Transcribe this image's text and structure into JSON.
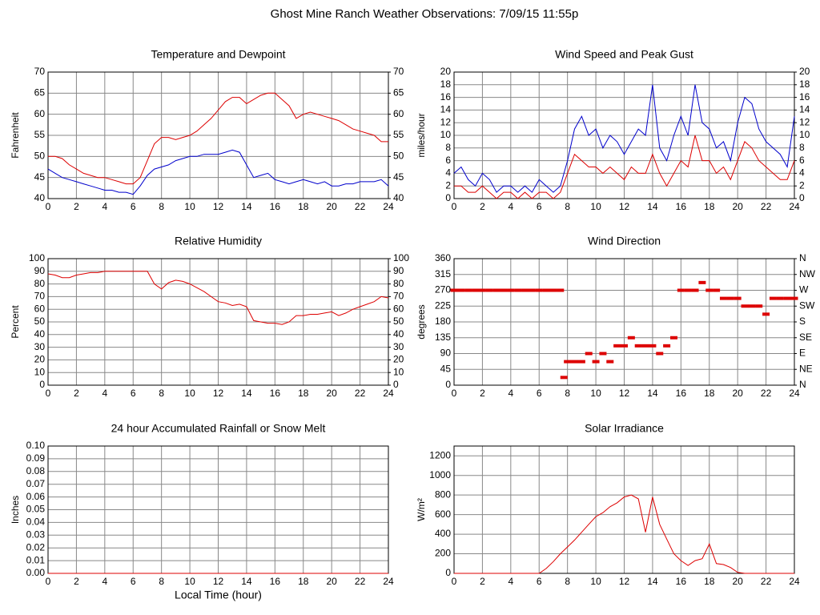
{
  "title": "Ghost Mine Ranch Weather Observations: 7/09/15 11:55p",
  "chart_data": [
    {
      "type": "line",
      "title": "Temperature and Dewpoint",
      "ylabel": "Fahrenheit",
      "x": [
        0,
        0.5,
        1,
        1.5,
        2,
        2.5,
        3,
        3.5,
        4,
        4.5,
        5,
        5.5,
        6,
        6.5,
        7,
        7.5,
        8,
        8.5,
        9,
        9.5,
        10,
        10.5,
        11,
        11.5,
        12,
        12.5,
        13,
        13.5,
        14,
        14.5,
        15,
        15.5,
        16,
        16.5,
        17,
        17.5,
        18,
        18.5,
        19,
        19.5,
        20,
        20.5,
        21,
        21.5,
        22,
        22.5,
        23,
        23.5,
        24
      ],
      "xlim": [
        0,
        24
      ],
      "xticks": [
        0,
        2,
        4,
        6,
        8,
        10,
        12,
        14,
        16,
        18,
        20,
        22,
        24
      ],
      "ylim": [
        40,
        70
      ],
      "yticks": [
        40,
        45,
        50,
        55,
        60,
        65,
        70
      ],
      "y2lim": [
        40,
        70
      ],
      "y2ticks": [
        40,
        45,
        50,
        55,
        60,
        65,
        70
      ],
      "grid": true,
      "series": [
        {
          "color": "#dd0000",
          "values": [
            50,
            50,
            49.5,
            48,
            47,
            46,
            45.5,
            45,
            45,
            44.5,
            44,
            43.5,
            43.5,
            45,
            49,
            53,
            54.5,
            54.5,
            54,
            54.5,
            55,
            56,
            57.5,
            59,
            61,
            63,
            64,
            64,
            62.5,
            63.5,
            64.5,
            65,
            65,
            63.5,
            62,
            59,
            60,
            60.5,
            60,
            59.5,
            59,
            58.5,
            57.5,
            56.5,
            56,
            55.5,
            55,
            53.5,
            53.5
          ]
        },
        {
          "color": "#0000cc",
          "values": [
            47,
            46,
            45,
            44.5,
            44,
            43.5,
            43,
            42.5,
            42,
            42,
            41.5,
            41.5,
            41,
            43,
            45.5,
            47,
            47.5,
            48,
            49,
            49.5,
            50,
            50,
            50.5,
            50.5,
            50.5,
            51,
            51.5,
            51,
            48,
            45,
            45.5,
            46,
            44.5,
            44,
            43.5,
            44,
            44.5,
            44,
            43.5,
            44,
            43,
            43,
            43.5,
            43.5,
            44,
            44,
            44,
            44.5,
            43
          ]
        }
      ]
    },
    {
      "type": "line",
      "title": "Wind Speed and Peak Gust",
      "ylabel": "miles/hour",
      "x": [
        0,
        0.5,
        1,
        1.5,
        2,
        2.5,
        3,
        3.5,
        4,
        4.5,
        5,
        5.5,
        6,
        6.5,
        7,
        7.5,
        8,
        8.5,
        9,
        9.5,
        10,
        10.5,
        11,
        11.5,
        12,
        12.5,
        13,
        13.5,
        14,
        14.5,
        15,
        15.5,
        16,
        16.5,
        17,
        17.5,
        18,
        18.5,
        19,
        19.5,
        20,
        20.5,
        21,
        21.5,
        22,
        22.5,
        23,
        23.5,
        24
      ],
      "xlim": [
        0,
        24
      ],
      "xticks": [
        0,
        2,
        4,
        6,
        8,
        10,
        12,
        14,
        16,
        18,
        20,
        22,
        24
      ],
      "ylim": [
        0,
        20
      ],
      "yticks": [
        0,
        2,
        4,
        6,
        8,
        10,
        12,
        14,
        16,
        18,
        20
      ],
      "y2lim": [
        0,
        20
      ],
      "y2ticks": [
        0,
        2,
        4,
        6,
        8,
        10,
        12,
        14,
        16,
        18,
        20
      ],
      "grid": true,
      "series": [
        {
          "color": "#0000cc",
          "values": [
            4,
            5,
            3,
            2,
            4,
            3,
            1,
            2,
            2,
            1,
            2,
            1,
            3,
            2,
            1,
            2,
            6,
            11,
            13,
            10,
            11,
            8,
            10,
            9,
            7,
            9,
            11,
            10,
            18,
            8,
            6,
            10,
            13,
            10,
            18,
            12,
            11,
            8,
            9,
            6,
            12,
            16,
            15,
            11,
            9,
            8,
            7,
            5,
            13
          ]
        },
        {
          "color": "#dd0000",
          "values": [
            2,
            2,
            1,
            1,
            2,
            1,
            0,
            1,
            1,
            0,
            1,
            0,
            1,
            1,
            0,
            1,
            4,
            7,
            6,
            5,
            5,
            4,
            5,
            4,
            3,
            5,
            4,
            4,
            7,
            4,
            2,
            4,
            6,
            5,
            10,
            6,
            6,
            4,
            5,
            3,
            6,
            9,
            8,
            6,
            5,
            4,
            3,
            3,
            6
          ]
        }
      ]
    },
    {
      "type": "line",
      "title": "Relative Humidity",
      "ylabel": "Percent",
      "x": [
        0,
        0.5,
        1,
        1.5,
        2,
        2.5,
        3,
        3.5,
        4,
        4.5,
        5,
        5.5,
        6,
        6.5,
        7,
        7.5,
        8,
        8.5,
        9,
        9.5,
        10,
        10.5,
        11,
        11.5,
        12,
        12.5,
        13,
        13.5,
        14,
        14.5,
        15,
        15.5,
        16,
        16.5,
        17,
        17.5,
        18,
        18.5,
        19,
        19.5,
        20,
        20.5,
        21,
        21.5,
        22,
        22.5,
        23,
        23.5,
        24
      ],
      "xlim": [
        0,
        24
      ],
      "xticks": [
        0,
        2,
        4,
        6,
        8,
        10,
        12,
        14,
        16,
        18,
        20,
        22,
        24
      ],
      "ylim": [
        0,
        100
      ],
      "yticks": [
        0,
        10,
        20,
        30,
        40,
        50,
        60,
        70,
        80,
        90,
        100
      ],
      "y2lim": [
        0,
        100
      ],
      "y2ticks": [
        0,
        10,
        20,
        30,
        40,
        50,
        60,
        70,
        80,
        90,
        100
      ],
      "grid": true,
      "series": [
        {
          "color": "#dd0000",
          "values": [
            88,
            87,
            85,
            85,
            87,
            88,
            89,
            89,
            90,
            90,
            90,
            90,
            90,
            90,
            90,
            80,
            76,
            81,
            83,
            82,
            80,
            77,
            74,
            70,
            66,
            65,
            63,
            64,
            62,
            51,
            50,
            49,
            49,
            48,
            50,
            55,
            55,
            56,
            56,
            57,
            58,
            55,
            57,
            60,
            62,
            64,
            66,
            70,
            69
          ]
        }
      ]
    },
    {
      "type": "scatter",
      "title": "Wind Direction",
      "ylabel": "degrees",
      "x": [
        0,
        0.5,
        1,
        1.5,
        2,
        2.5,
        3,
        3.5,
        4,
        4.5,
        5,
        5.5,
        6,
        6.5,
        7,
        7.5,
        7.75,
        8,
        8.5,
        9,
        9.5,
        10,
        10.5,
        11,
        11.5,
        12,
        12.5,
        13,
        13.5,
        14,
        14.5,
        15,
        15.5,
        16,
        16.5,
        17,
        17.5,
        18,
        18.5,
        19,
        19.5,
        20,
        20.5,
        21,
        21.5,
        22,
        22.5,
        23,
        23.5,
        24
      ],
      "xlim": [
        0,
        24
      ],
      "xticks": [
        0,
        2,
        4,
        6,
        8,
        10,
        12,
        14,
        16,
        18,
        20,
        22,
        24
      ],
      "ylim": [
        0,
        360
      ],
      "yticks": [
        0,
        45,
        90,
        135,
        180,
        225,
        270,
        315,
        360
      ],
      "y2lim": [
        0,
        360
      ],
      "y2ticks": [
        {
          "value": 0,
          "label": "N"
        },
        {
          "value": 45,
          "label": "NE"
        },
        {
          "value": 90,
          "label": "E"
        },
        {
          "value": 135,
          "label": "SE"
        },
        {
          "value": 180,
          "label": "S"
        },
        {
          "value": 225,
          "label": "SW"
        },
        {
          "value": 270,
          "label": "W"
        },
        {
          "value": 315,
          "label": "NW"
        },
        {
          "value": 360,
          "label": "N"
        }
      ],
      "grid": true,
      "color": "#dd0000",
      "values": [
        270,
        270,
        270,
        270,
        270,
        270,
        270,
        270,
        270,
        270,
        270,
        270,
        270,
        270,
        270,
        270,
        22,
        67,
        67,
        67,
        90,
        67,
        90,
        67,
        112,
        112,
        135,
        112,
        112,
        112,
        90,
        112,
        135,
        270,
        270,
        270,
        292,
        270,
        270,
        247,
        247,
        247,
        225,
        225,
        225,
        202,
        247,
        247,
        247,
        247
      ]
    },
    {
      "type": "line",
      "title": "24 hour Accumulated Rainfall or Snow Melt",
      "ylabel": "Inches",
      "xlabel": "Local Time (hour)",
      "x": [
        0,
        24
      ],
      "xlim": [
        0,
        24
      ],
      "xticks": [
        0,
        2,
        4,
        6,
        8,
        10,
        12,
        14,
        16,
        18,
        20,
        22,
        24
      ],
      "ylim": [
        0,
        0.1
      ],
      "yticks": [
        {
          "value": 0,
          "label": "0.00"
        },
        {
          "value": 0.01,
          "label": "0.01"
        },
        {
          "value": 0.02,
          "label": "0.02"
        },
        {
          "value": 0.03,
          "label": "0.03"
        },
        {
          "value": 0.04,
          "label": "0.04"
        },
        {
          "value": 0.05,
          "label": "0.05"
        },
        {
          "value": 0.06,
          "label": "0.06"
        },
        {
          "value": 0.07,
          "label": "0.07"
        },
        {
          "value": 0.08,
          "label": "0.08"
        },
        {
          "value": 0.09,
          "label": "0.09"
        },
        {
          "value": 0.1,
          "label": "0.10"
        }
      ],
      "grid": true,
      "series": [
        {
          "color": "#dd0000",
          "values": [
            0,
            0
          ]
        }
      ]
    },
    {
      "type": "line",
      "title": "Solar Irradiance",
      "ylabel": "W/m²",
      "x": [
        0,
        0.5,
        1,
        1.5,
        2,
        2.5,
        3,
        3.5,
        4,
        4.5,
        5,
        5.5,
        6,
        6.5,
        7,
        7.5,
        8,
        8.5,
        9,
        9.5,
        10,
        10.5,
        11,
        11.5,
        12,
        12.5,
        13,
        13.5,
        14,
        14.5,
        15,
        15.5,
        16,
        16.5,
        17,
        17.5,
        18,
        18.5,
        19,
        19.5,
        20,
        20.5,
        21,
        21.5,
        22,
        22.5,
        23,
        23.5,
        24
      ],
      "xlim": [
        0,
        24
      ],
      "xticks": [
        0,
        2,
        4,
        6,
        8,
        10,
        12,
        14,
        16,
        18,
        20,
        22,
        24
      ],
      "ylim": [
        0,
        1300
      ],
      "yticks": [
        0,
        200,
        400,
        600,
        800,
        1000,
        1200
      ],
      "grid": true,
      "series": [
        {
          "color": "#dd0000",
          "values": [
            0,
            0,
            0,
            0,
            0,
            0,
            0,
            0,
            0,
            0,
            0,
            0,
            0,
            50,
            120,
            200,
            270,
            340,
            420,
            500,
            580,
            620,
            680,
            720,
            780,
            800,
            760,
            420,
            780,
            500,
            350,
            200,
            130,
            80,
            130,
            150,
            300,
            100,
            90,
            60,
            10,
            0,
            0,
            0,
            0,
            0,
            0,
            0,
            0
          ]
        }
      ]
    }
  ]
}
